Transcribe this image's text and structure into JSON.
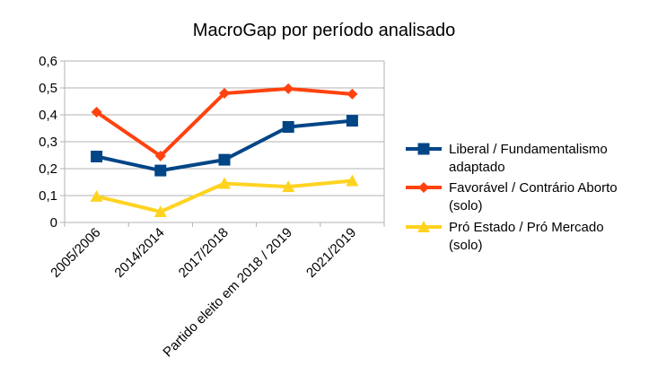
{
  "chart_data": {
    "type": "line",
    "title": "MacroGap por período analisado",
    "categories": [
      "2005/2006",
      "2014/2014",
      "2017/2018",
      "Partido eleito em 2018 / 2019",
      "2021/2019"
    ],
    "ylim": [
      0,
      0.6
    ],
    "yticks": [
      "0",
      "0,1",
      "0,2",
      "0,3",
      "0,4",
      "0,5",
      "0,6"
    ],
    "grid": "horizontal",
    "legend_position": "right",
    "series": [
      {
        "name_lines": [
          "Liberal / Fundamentalismo",
          "adaptado"
        ],
        "values": [
          0.245,
          0.193,
          0.233,
          0.355,
          0.378
        ],
        "color": "#004586",
        "marker": "square"
      },
      {
        "name_lines": [
          "Favorável / Contrário Aborto",
          "(solo)"
        ],
        "values": [
          0.41,
          0.247,
          0.48,
          0.497,
          0.477
        ],
        "color": "#ff420e",
        "marker": "diamond"
      },
      {
        "name_lines": [
          "Pró Estado / Pró Mercado",
          "(solo)"
        ],
        "values": [
          0.097,
          0.04,
          0.145,
          0.133,
          0.155
        ],
        "color": "#ffd320",
        "marker": "triangle"
      }
    ]
  }
}
